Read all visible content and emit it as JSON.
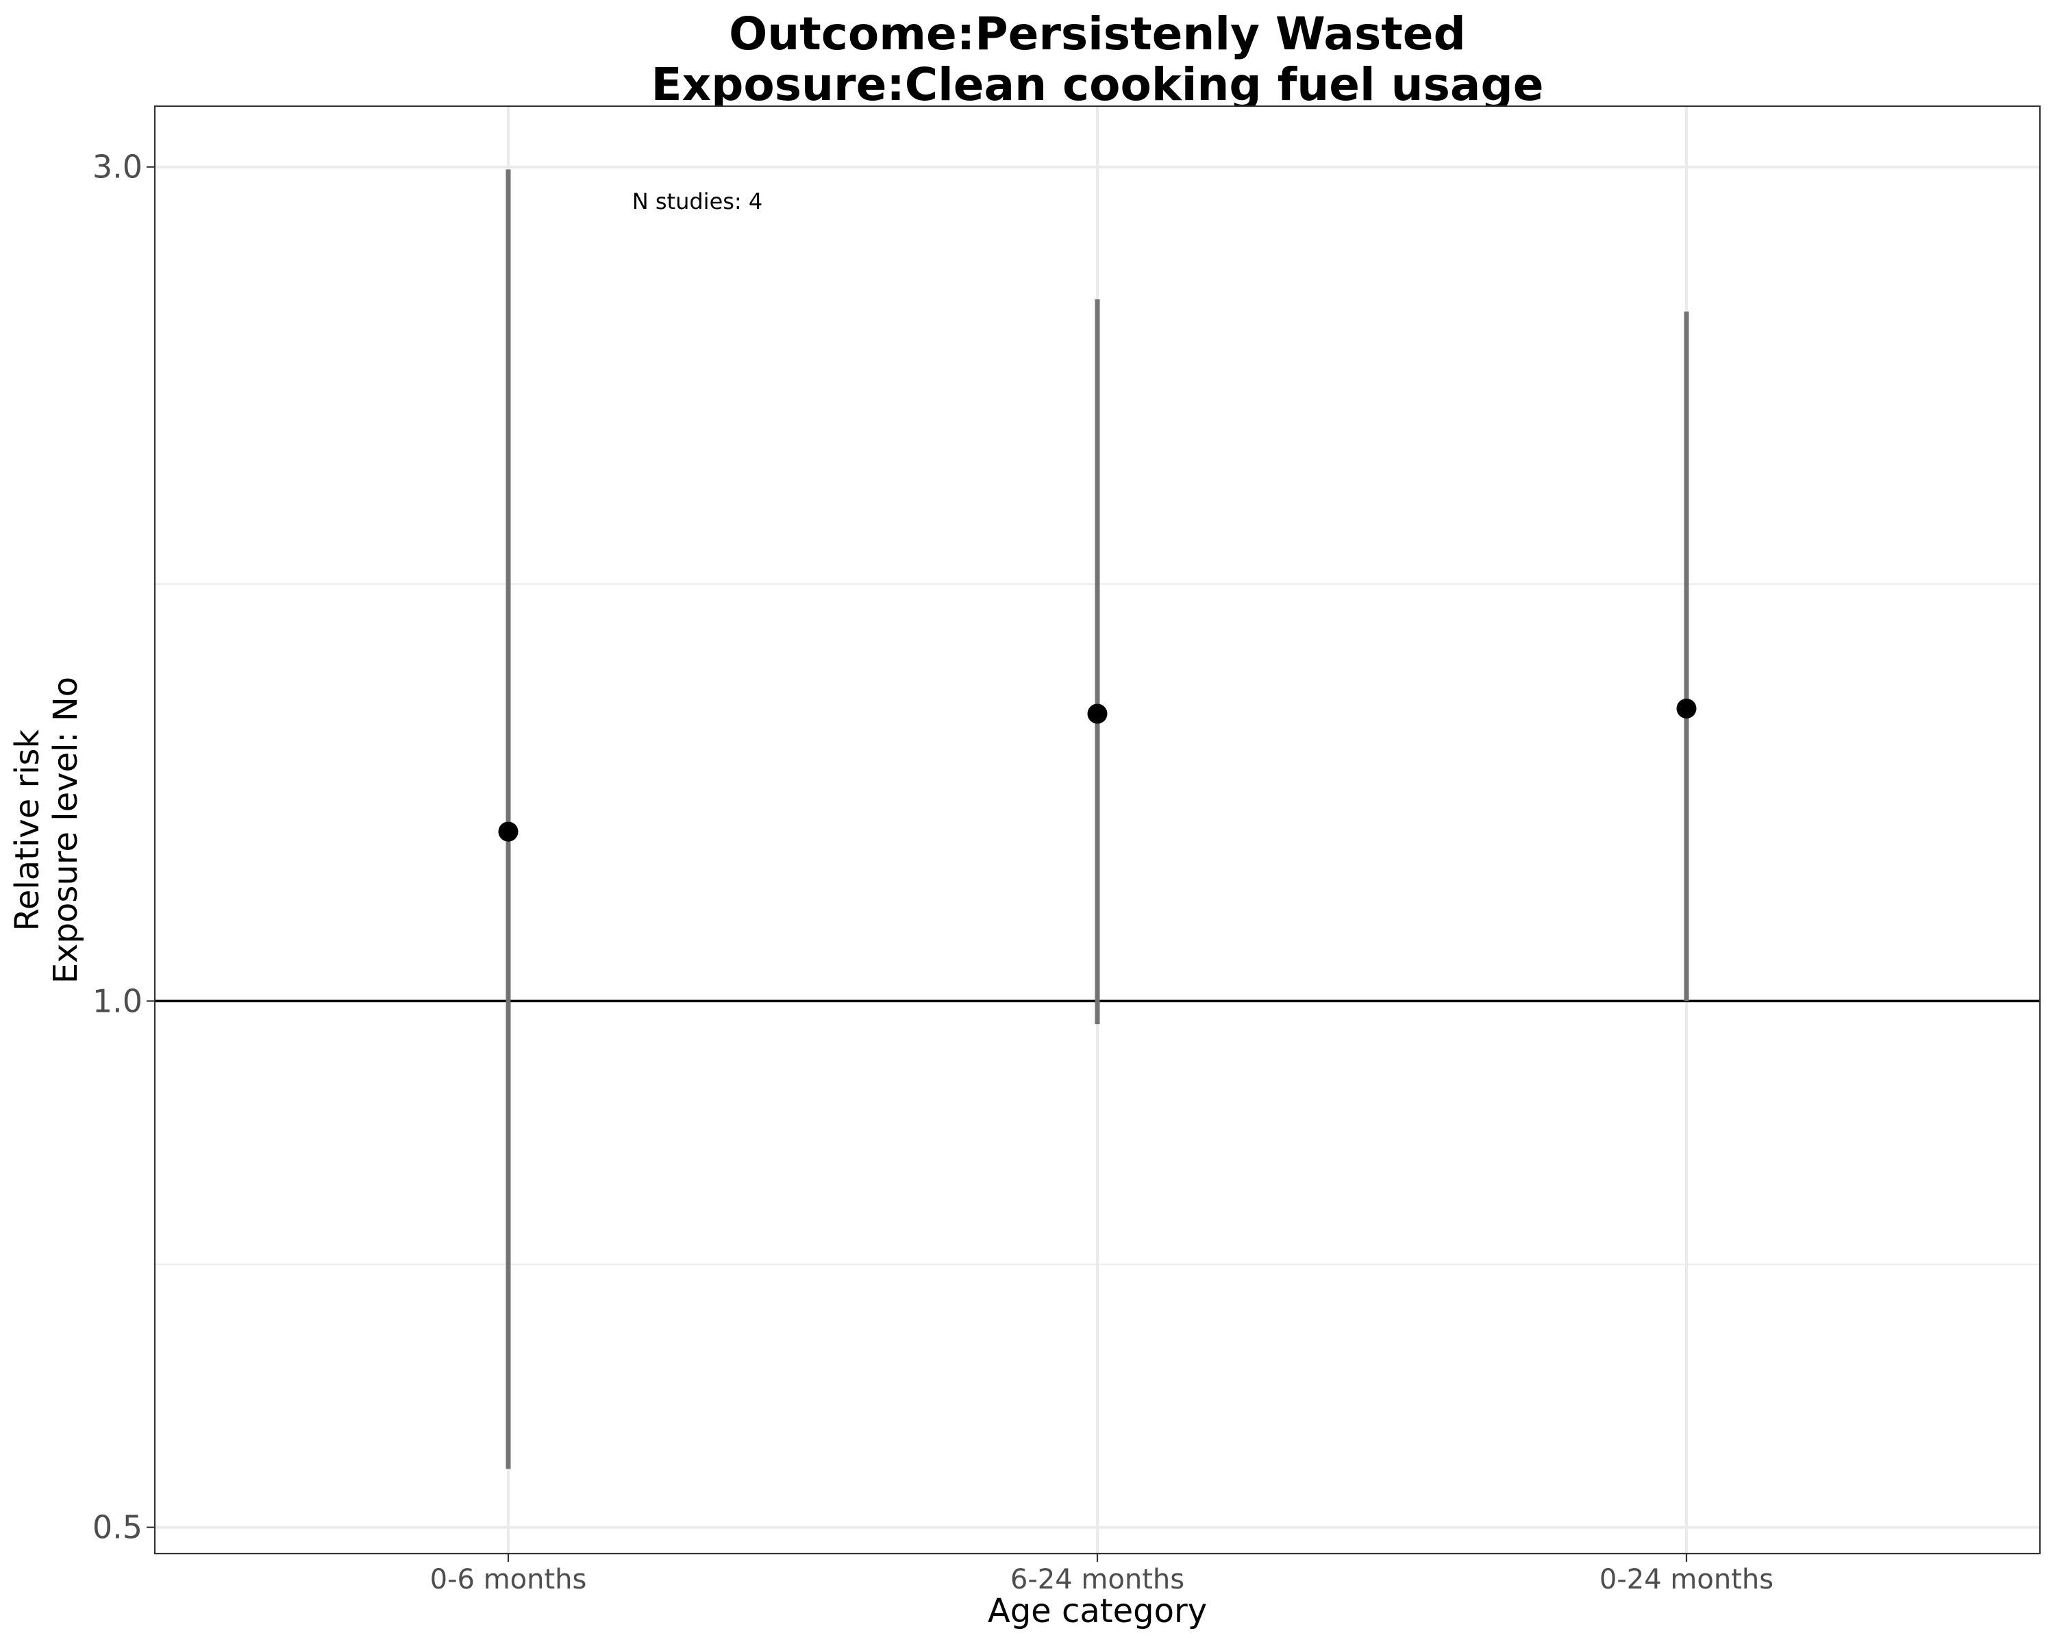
{
  "chart_data": {
    "type": "scatter",
    "title_line1": "Outcome:Persistenly Wasted",
    "title_line2": "Exposure:Clean cooking fuel usage",
    "xlabel": "Age category",
    "ylabel_line1": "Relative risk",
    "ylabel_line2": "Exposure level: No",
    "y_scale": "log",
    "ylim": [
      0.483,
      3.25
    ],
    "y_ticks": [
      0.5,
      1.0,
      3.0
    ],
    "y_tick_labels": [
      "0.5",
      "1.0",
      "3.0"
    ],
    "y_minor_gridlines": [
      0.707,
      1.732
    ],
    "reference_line": 1.0,
    "grid": true,
    "annotation": "N studies: 4",
    "categories": [
      "0-6 months",
      "6-24 months",
      "0-24 months"
    ],
    "points": [
      {
        "category": "0-6 months",
        "rr": 1.25,
        "ci_lower": 0.54,
        "ci_upper": 2.99
      },
      {
        "category": "6-24 months",
        "rr": 1.46,
        "ci_lower": 0.97,
        "ci_upper": 2.52
      },
      {
        "category": "0-24 months",
        "rr": 1.47,
        "ci_lower": 1.0,
        "ci_upper": 2.48
      }
    ],
    "colors": {
      "point": "#000000",
      "errorbar": "#737373",
      "grid": "#ebebeb",
      "panel_border": "#333333",
      "reference_line": "#000000"
    }
  }
}
